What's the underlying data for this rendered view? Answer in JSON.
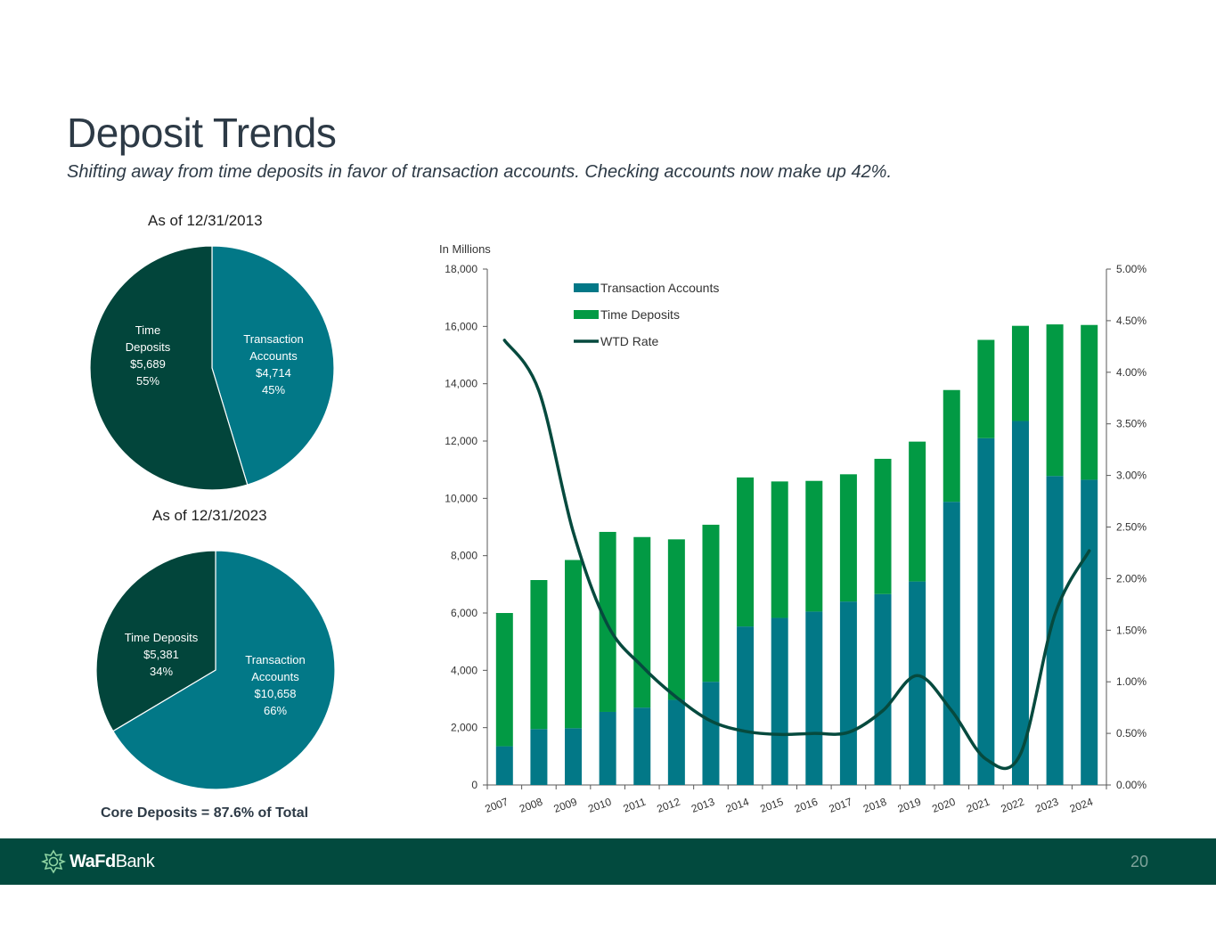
{
  "page": {
    "title": "Deposit Trends",
    "subtitle": "Shifting away from time deposits in favor of transaction accounts.  Checking accounts now make up 42%.",
    "core_note": "Core Deposits = 87.6% of Total",
    "page_number": "20"
  },
  "footer": {
    "logo_bold": "WaFd",
    "logo_regular": "Bank",
    "logo_icon": "wafd-logo-icon"
  },
  "colors": {
    "transaction": "#027887",
    "time_deposits_dark": "#02453b",
    "time_deposits_bar": "#029a44",
    "rate_line": "#064a3e",
    "footer": "#024a3e"
  },
  "chart_data": [
    {
      "type": "pie",
      "title": "As of 12/31/2013",
      "slices": [
        {
          "label": [
            "Transaction",
            "Accounts"
          ],
          "value": 4714,
          "value_label": "$4,714",
          "percent_label": "45%",
          "color": "#027887"
        },
        {
          "label": [
            "Time",
            "Deposits"
          ],
          "value": 5689,
          "value_label": "$5,689",
          "percent_label": "55%",
          "color": "#02453b"
        }
      ]
    },
    {
      "type": "pie",
      "title": "As of 12/31/2023",
      "slices": [
        {
          "label": [
            "Transaction",
            "Accounts"
          ],
          "value": 10658,
          "value_label": "$10,658",
          "percent_label": "66%",
          "color": "#027887"
        },
        {
          "label": [
            "Time Deposits"
          ],
          "value": 5381,
          "value_label": "$5,381",
          "percent_label": "34%",
          "color": "#02453b"
        }
      ]
    },
    {
      "type": "bar",
      "stacked": true,
      "unit_label": "In Millions",
      "categories": [
        "2007",
        "2008",
        "2009",
        "2010",
        "2011",
        "2012",
        "2013",
        "2014",
        "2015",
        "2016",
        "2017",
        "2018",
        "2019",
        "2020",
        "2021",
        "2022",
        "2023",
        "2024"
      ],
      "series": [
        {
          "name": "Transaction Accounts",
          "color": "#027887",
          "values": [
            1350,
            1950,
            1980,
            2550,
            2700,
            2970,
            3600,
            5530,
            5830,
            6050,
            6400,
            6660,
            7100,
            9880,
            12100,
            12700,
            10780,
            10650
          ]
        },
        {
          "name": "Time Deposits",
          "color": "#029a44",
          "values": [
            4650,
            5200,
            5870,
            6280,
            5950,
            5600,
            5480,
            5200,
            4760,
            4560,
            4440,
            4720,
            4880,
            3900,
            3430,
            3320,
            5290,
            5400
          ]
        }
      ],
      "line_series": {
        "name": "WTD Rate",
        "color": "#064a3e",
        "axis": "right",
        "values": [
          4.31,
          3.82,
          2.45,
          1.55,
          1.15,
          0.85,
          0.62,
          0.52,
          0.49,
          0.5,
          0.51,
          0.72,
          1.06,
          0.72,
          0.25,
          0.3,
          1.65,
          2.27
        ]
      },
      "y_left": {
        "min": 0,
        "max": 18000,
        "ticks": [
          "0",
          "2,000",
          "4,000",
          "6,000",
          "8,000",
          "10,000",
          "12,000",
          "14,000",
          "16,000",
          "18,000"
        ]
      },
      "y_right": {
        "min": 0,
        "max": 5,
        "ticks": [
          "0.00%",
          "0.50%",
          "1.00%",
          "1.50%",
          "2.00%",
          "2.50%",
          "3.00%",
          "3.50%",
          "4.00%",
          "4.50%",
          "5.00%"
        ]
      },
      "legend": {
        "position": "top-left",
        "entries": [
          "Transaction Accounts",
          "Time Deposits",
          "WTD Rate"
        ]
      },
      "grid": false
    }
  ]
}
